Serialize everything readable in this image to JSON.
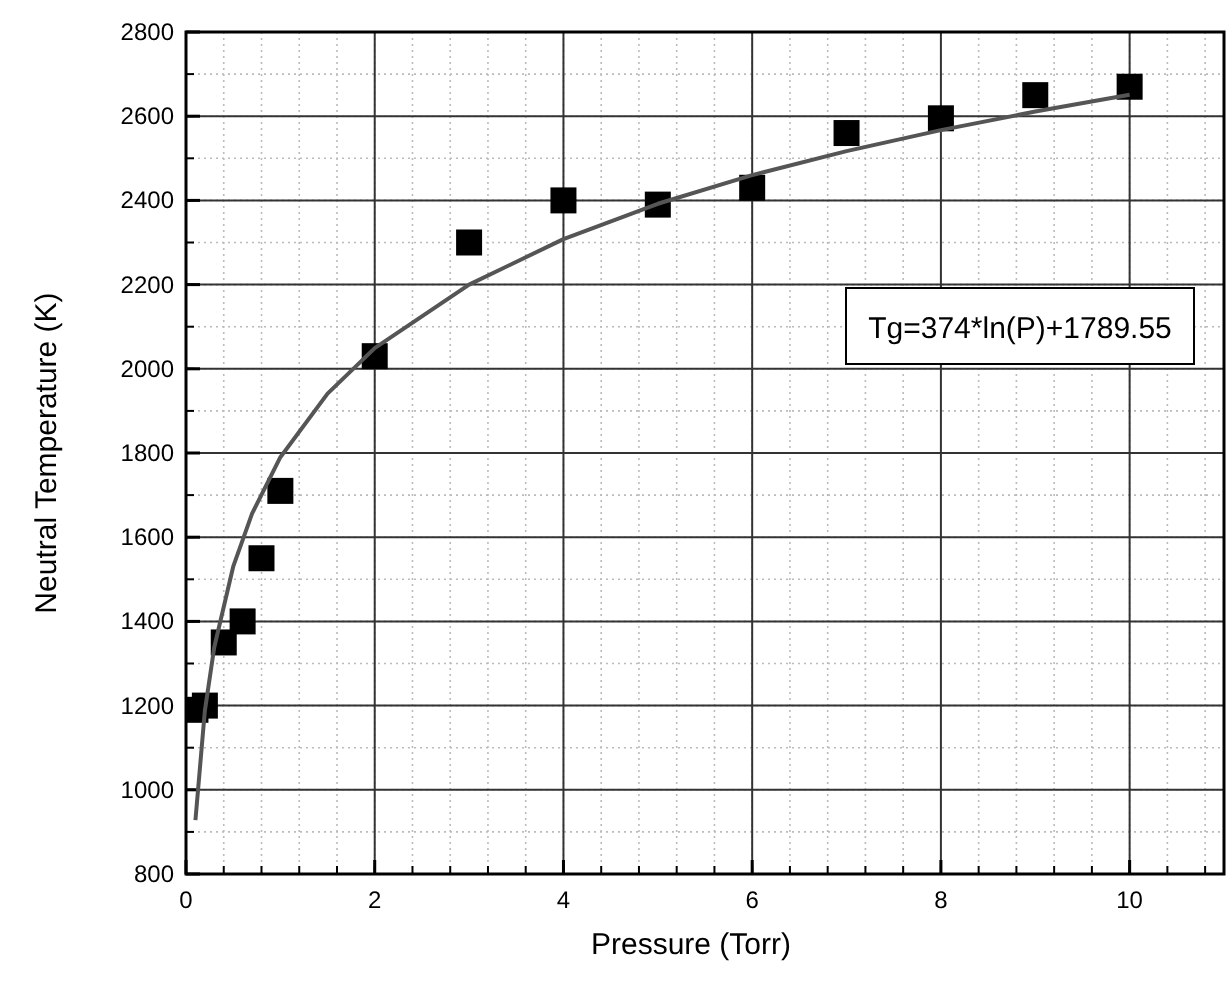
{
  "chart_data": {
    "type": "scatter",
    "xlabel": "Pressure (Torr)",
    "ylabel": "Neutral Temperature (K)",
    "xlim": [
      0,
      11
    ],
    "ylim": [
      800,
      2800
    ],
    "xticks": [
      0,
      2,
      4,
      6,
      8,
      10
    ],
    "yticks": [
      800,
      1000,
      1200,
      1400,
      1600,
      1800,
      2000,
      2200,
      2400,
      2600,
      2800
    ],
    "grid": true,
    "marker": "square",
    "annotations": [
      "Tg=374*ln(P)+1789.55"
    ],
    "series": [
      {
        "color": "#000000",
        "x": [
          0.1,
          0.2,
          0.4,
          0.6,
          0.8,
          1,
          2,
          3,
          4,
          5,
          6,
          7,
          8,
          9,
          10
        ],
        "values": [
          1190,
          1200,
          1350,
          1400,
          1550,
          1710,
          2030,
          2300,
          2400,
          2390,
          2430,
          2560,
          2595,
          2650,
          2670
        ]
      },
      {
        "type": "line",
        "color": "#555555",
        "marker": "none",
        "line_style": "solid",
        "x": [
          0.1,
          0.2,
          0.3,
          0.5,
          0.7,
          1,
          1.5,
          2,
          3,
          4,
          5,
          6,
          7,
          8,
          9,
          10
        ],
        "values": [
          928,
          1188,
          1339,
          1530,
          1656,
          1790,
          1941,
          2049,
          2200,
          2308,
          2392,
          2460,
          2517,
          2567,
          2611,
          2651
        ]
      }
    ]
  }
}
